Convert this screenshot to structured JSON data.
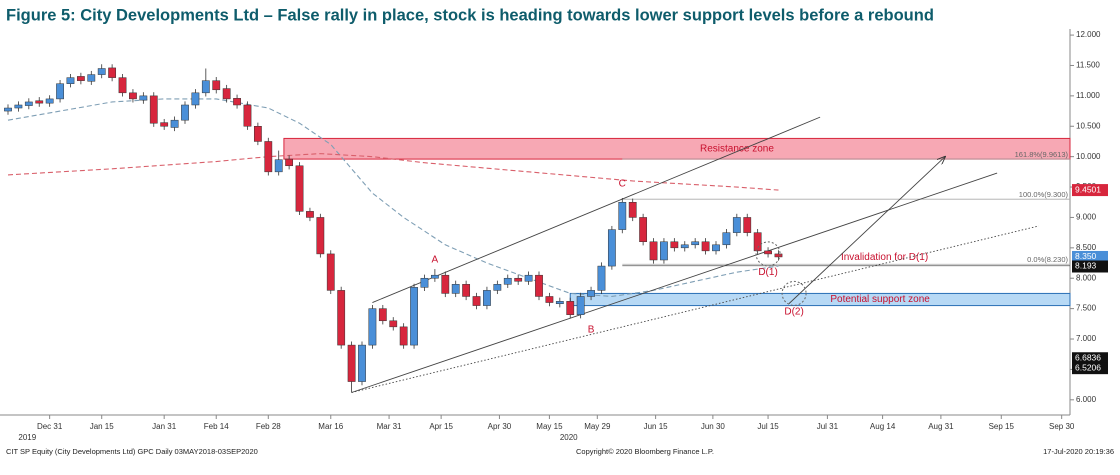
{
  "chart_data": {
    "type": "candlestick",
    "title": "Figure 5: City Developments Ltd – False rally in place, stock is heading towards lower support levels before a rebound",
    "xlim": [
      0,
      102
    ],
    "ylim": [
      5.75,
      12.1
    ],
    "yticks": [
      {
        "value": 6,
        "label": "6.000"
      },
      {
        "value": 6.5,
        "label": "6.500"
      },
      {
        "value": 7,
        "label": "7.000"
      },
      {
        "value": 7.5,
        "label": "7.500"
      },
      {
        "value": 8,
        "label": "8.000"
      },
      {
        "value": 8.5,
        "label": "8.500"
      },
      {
        "value": 9,
        "label": "9.000"
      },
      {
        "value": 9.5,
        "label": "9.500"
      },
      {
        "value": 10,
        "label": "10.000"
      },
      {
        "value": 10.5,
        "label": "10.500"
      },
      {
        "value": 11,
        "label": "11.000"
      },
      {
        "value": 11.5,
        "label": "11.500"
      },
      {
        "value": 12,
        "label": "12.000"
      }
    ],
    "xticks": [
      {
        "value": 4,
        "label": "Dec 31"
      },
      {
        "value": 9,
        "label": "Jan 15"
      },
      {
        "value": 15,
        "label": "Jan 31"
      },
      {
        "value": 20,
        "label": "Feb 14"
      },
      {
        "value": 25,
        "label": "Feb 28"
      },
      {
        "value": 31,
        "label": "Mar 16"
      },
      {
        "value": 36.6,
        "label": "Mar 31"
      },
      {
        "value": 41.6,
        "label": "Apr 15"
      },
      {
        "value": 47.2,
        "label": "Apr 30"
      },
      {
        "value": 52,
        "label": "May 15"
      },
      {
        "value": 56.6,
        "label": "May 29"
      },
      {
        "value": 62.2,
        "label": "Jun 15"
      },
      {
        "value": 67.7,
        "label": "Jun 30"
      },
      {
        "value": 73,
        "label": "Jul 15"
      },
      {
        "value": 78.7,
        "label": "Jul 31"
      },
      {
        "value": 84,
        "label": "Aug 14"
      },
      {
        "value": 89.6,
        "label": "Aug 31"
      },
      {
        "value": 95.4,
        "label": "Sep 15"
      },
      {
        "value": 101.2,
        "label": "Sep 30"
      }
    ],
    "years": [
      {
        "value": 1,
        "label": "2019"
      },
      {
        "value": 53,
        "label": "2020"
      }
    ],
    "up_color": "#4a8fd8",
    "down_color": "#d7263d",
    "open": [
      10.75,
      10.8,
      10.84,
      10.92,
      10.88,
      10.95,
      11.2,
      11.32,
      11.24,
      11.35,
      11.46,
      11.3,
      11.05,
      10.93,
      11.0,
      10.56,
      10.48,
      10.6,
      10.85,
      11.05,
      11.25,
      11.12,
      10.96,
      10.85,
      10.5,
      10.25,
      9.75,
      9.96,
      9.85,
      9.1,
      9.0,
      8.4,
      7.8,
      6.9,
      6.3,
      6.9,
      7.5,
      7.3,
      7.2,
      6.9,
      7.85,
      8.0,
      8.05,
      7.75,
      7.9,
      7.7,
      7.55,
      7.8,
      7.9,
      8.0,
      7.95,
      8.05,
      7.7,
      7.58,
      7.62,
      7.4,
      7.7,
      7.8,
      8.2,
      8.8,
      9.25,
      9.0,
      8.6,
      8.3,
      8.6,
      8.5,
      8.55,
      8.6,
      8.45,
      8.55,
      8.75,
      9.0,
      8.75,
      8.45,
      8.4
    ],
    "high": [
      10.86,
      10.91,
      10.96,
      10.98,
      11.01,
      11.26,
      11.36,
      11.38,
      11.41,
      11.52,
      11.52,
      11.36,
      11.11,
      11.06,
      11.06,
      10.62,
      10.66,
      10.91,
      11.11,
      11.45,
      11.31,
      11.18,
      11.02,
      10.91,
      10.56,
      10.31,
      10.1,
      10.02,
      9.91,
      9.16,
      9.06,
      8.46,
      7.86,
      6.96,
      6.96,
      7.56,
      7.56,
      7.36,
      7.26,
      7.91,
      8.06,
      8.15,
      8.11,
      7.96,
      7.96,
      7.76,
      7.86,
      7.96,
      8.06,
      8.06,
      8.11,
      8.11,
      7.76,
      7.68,
      7.68,
      7.76,
      7.86,
      8.26,
      8.86,
      9.32,
      9.31,
      9.06,
      8.66,
      8.66,
      8.66,
      8.61,
      8.66,
      8.66,
      8.61,
      8.81,
      9.06,
      9.06,
      8.81,
      8.51,
      8.46
    ],
    "low": [
      10.69,
      10.74,
      10.78,
      10.82,
      10.82,
      10.89,
      11.14,
      11.19,
      11.18,
      11.29,
      11.24,
      10.99,
      10.89,
      10.87,
      10.49,
      10.44,
      10.42,
      10.54,
      10.79,
      10.99,
      11.04,
      10.89,
      10.79,
      10.44,
      10.19,
      9.69,
      9.69,
      9.79,
      9.04,
      8.94,
      8.34,
      7.74,
      6.84,
      6.12,
      6.24,
      6.84,
      7.24,
      7.14,
      6.84,
      6.84,
      7.79,
      7.94,
      7.69,
      7.69,
      7.64,
      7.49,
      7.49,
      7.74,
      7.84,
      7.89,
      7.89,
      7.64,
      7.54,
      7.52,
      7.34,
      7.34,
      7.64,
      7.74,
      8.14,
      8.74,
      8.94,
      8.54,
      8.24,
      8.24,
      8.44,
      8.44,
      8.49,
      8.39,
      8.39,
      8.49,
      8.69,
      8.69,
      8.39,
      8.34,
      8.29
    ],
    "close": [
      10.8,
      10.85,
      10.9,
      10.88,
      10.95,
      11.2,
      11.3,
      11.25,
      11.35,
      11.45,
      11.3,
      11.05,
      10.95,
      11.0,
      10.55,
      10.5,
      10.6,
      10.85,
      11.05,
      11.25,
      11.1,
      10.95,
      10.85,
      10.5,
      10.25,
      9.75,
      9.95,
      9.85,
      9.1,
      9.0,
      8.4,
      7.8,
      6.9,
      6.3,
      6.9,
      7.5,
      7.3,
      7.2,
      6.9,
      7.85,
      8.0,
      8.05,
      7.75,
      7.9,
      7.7,
      7.55,
      7.8,
      7.9,
      8.0,
      7.95,
      8.05,
      7.7,
      7.6,
      7.62,
      7.4,
      7.7,
      7.8,
      8.2,
      8.8,
      9.25,
      9.0,
      8.6,
      8.3,
      8.6,
      8.5,
      8.55,
      8.6,
      8.45,
      8.55,
      8.75,
      9.0,
      8.75,
      8.45,
      8.4,
      8.35
    ],
    "moving_averages": [
      {
        "color": "#7f9fb5",
        "x": [
          0,
          5,
          10,
          15,
          20,
          25,
          28,
          31,
          35,
          38,
          42,
          46,
          50,
          54,
          58,
          62,
          66,
          70,
          74
        ],
        "values": [
          10.6,
          10.75,
          10.9,
          10.95,
          10.95,
          10.8,
          10.55,
          10.2,
          9.4,
          9.0,
          8.55,
          8.25,
          8.0,
          7.75,
          7.7,
          7.8,
          7.95,
          8.1,
          8.2
        ]
      },
      {
        "color": "#d9606b",
        "x": [
          0,
          10,
          20,
          25,
          30,
          35,
          40,
          50,
          60,
          70,
          74
        ],
        "values": [
          9.7,
          9.8,
          9.92,
          10.0,
          10.05,
          10.0,
          9.9,
          9.75,
          9.6,
          9.5,
          9.45
        ]
      }
    ],
    "zones": [
      {
        "label": "Resistance zone",
        "range": [
          9.96,
          10.3
        ],
        "start": 26.5,
        "fill": "#f7a8b4",
        "stroke": "#d7263d"
      },
      {
        "label": "Potential support zone",
        "range": [
          7.55,
          7.75
        ],
        "start": 54,
        "fill": "#b7d9f5",
        "stroke": "#2a6fb5"
      }
    ],
    "fib_levels": [
      {
        "value": 9.9613,
        "label": "161.8%(9.9613)"
      },
      {
        "value": 9.3,
        "label": "100.0%(9.300)"
      },
      {
        "value": 8.23,
        "label": "0.0%(8.230)"
      }
    ],
    "fib_start": 59,
    "invalidation": {
      "label": "Invalidation for D(1)",
      "value": 8.23,
      "at": 80
    },
    "trendlines": [
      {
        "points": [
          [
            35,
            7.6
          ],
          [
            78,
            10.65
          ]
        ],
        "style": "solid"
      },
      {
        "points": [
          [
            33,
            6.12
          ],
          [
            95,
            9.73
          ]
        ],
        "style": "solid"
      },
      {
        "points": [
          [
            33,
            6.12
          ],
          [
            99,
            8.86
          ]
        ],
        "style": "dotted"
      },
      {
        "points": [
          [
            75,
            7.58
          ],
          [
            90,
            10.0
          ]
        ],
        "style": "arrow"
      }
    ],
    "waves": [
      {
        "label": "A",
        "x": 41,
        "value": 8.3
      },
      {
        "label": "B",
        "x": 56,
        "value": 7.15
      },
      {
        "label": "C",
        "x": 59,
        "value": 9.55
      },
      {
        "label": "D(1)",
        "x": 73,
        "value": 8.1,
        "circle": 8.4
      },
      {
        "label": "D(2)",
        "x": 75.5,
        "value": 7.45,
        "circle": 7.75
      }
    ],
    "price_tags": [
      {
        "value": 9.4501,
        "label": "9.4501",
        "color": "#d7263d"
      },
      {
        "value": 8.35,
        "label": "8.350",
        "color": "#4a8fd8"
      },
      {
        "value": 8.193,
        "label": "8.193",
        "color": "#111"
      },
      {
        "value": 6.6836,
        "label": "6.6836",
        "color": "#111"
      },
      {
        "value": 6.5206,
        "label": "6.5206",
        "color": "#111"
      }
    ],
    "footer": {
      "left": "CIT SP Equity (City Developments Ltd) GPC  Daily 03MAY2018-03SEP2020",
      "center": "Copyright© 2020 Bloomberg Finance L.P.",
      "right": "17-Jul-2020 20:19:36"
    }
  }
}
